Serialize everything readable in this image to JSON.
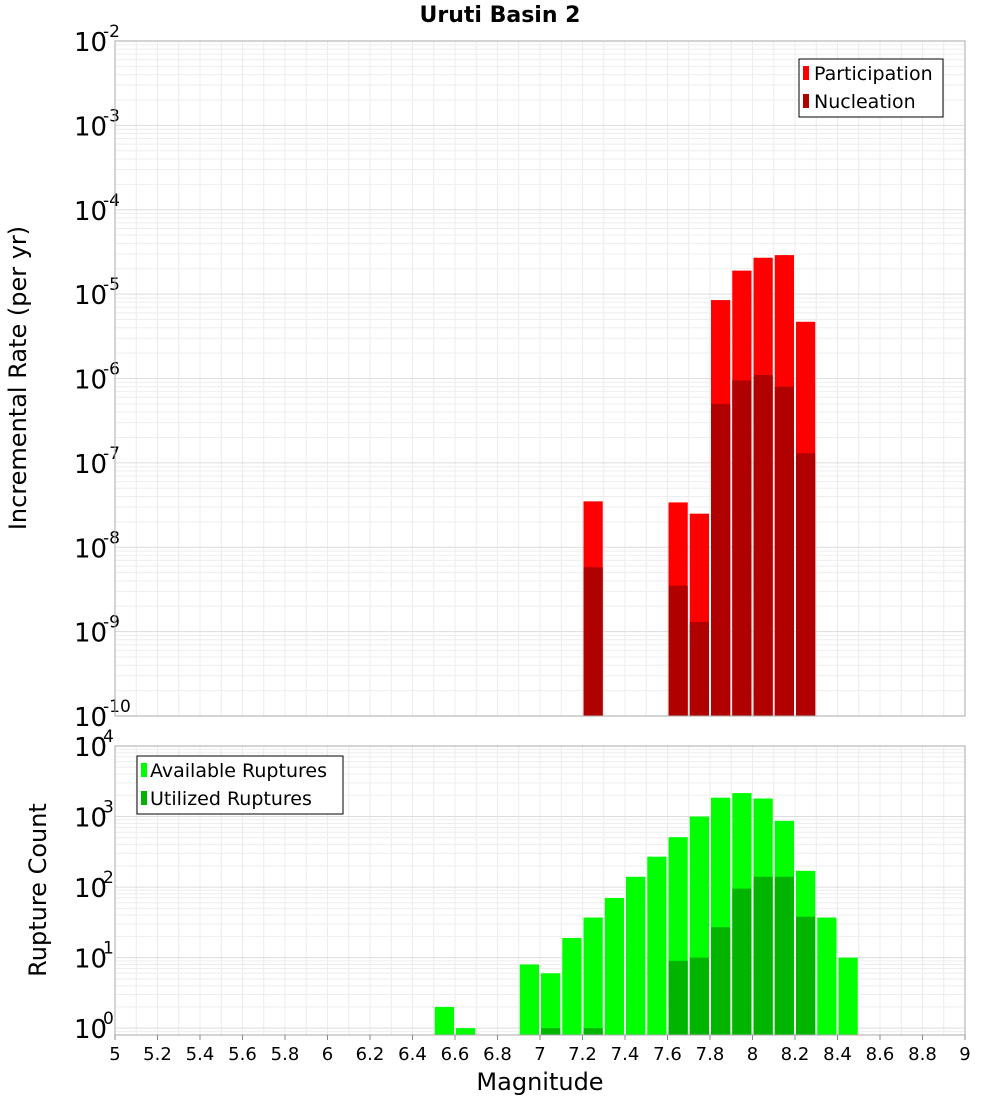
{
  "chart_data": [
    {
      "type": "bar",
      "title": "Uruti Basin 2",
      "xlabel": "",
      "ylabel": "Incremental Rate (per yr)",
      "yscale": "log",
      "ylim": [
        1e-10,
        0.01
      ],
      "xlim": [
        5,
        9
      ],
      "grid": true,
      "legend_position": "top-right",
      "colors": {
        "participation": "#ff0000",
        "nucleation": "#b00000"
      },
      "series": [
        {
          "name": "Participation",
          "x": [
            7.25,
            7.65,
            7.75,
            7.85,
            7.95,
            8.05,
            8.15,
            8.25
          ],
          "values": [
            3.5e-08,
            3.4e-08,
            2.5e-08,
            8.5e-06,
            1.9e-05,
            2.7e-05,
            2.9e-05,
            4.7e-06
          ]
        },
        {
          "name": "Nucleation",
          "x": [
            7.25,
            7.65,
            7.75,
            7.85,
            7.95,
            8.05,
            8.15,
            8.25
          ],
          "values": [
            5.8e-09,
            3.5e-09,
            1.3e-09,
            5e-07,
            9.5e-07,
            1.1e-06,
            8e-07,
            1.3e-07
          ]
        }
      ]
    },
    {
      "type": "bar",
      "xlabel": "Magnitude",
      "ylabel": "Rupture Count",
      "yscale": "log",
      "ylim": [
        0.8,
        10000
      ],
      "xlim": [
        5,
        9
      ],
      "grid": true,
      "legend_position": "top-left",
      "colors": {
        "available": "#00ff00",
        "utilized": "#00b400"
      },
      "series": [
        {
          "name": "Available Ruptures",
          "x": [
            6.55,
            6.65,
            6.95,
            7.05,
            7.15,
            7.25,
            7.35,
            7.45,
            7.55,
            7.65,
            7.75,
            7.85,
            7.95,
            8.05,
            8.15,
            8.25,
            8.35,
            8.45
          ],
          "values": [
            2,
            1,
            8,
            6,
            19,
            37,
            70,
            140,
            270,
            510,
            1000,
            1850,
            2150,
            1800,
            870,
            170,
            37,
            10
          ]
        },
        {
          "name": "Utilized Ruptures",
          "x": [
            7.05,
            7.25,
            7.65,
            7.75,
            7.85,
            7.95,
            8.05,
            8.15,
            8.25
          ],
          "values": [
            1,
            1,
            9,
            10,
            27,
            95,
            140,
            140,
            38
          ]
        }
      ]
    }
  ],
  "x_ticks": [
    "5",
    "5.2",
    "5.4",
    "5.6",
    "5.8",
    "6",
    "6.2",
    "6.4",
    "6.6",
    "6.8",
    "7",
    "7.2",
    "7.4",
    "7.6",
    "7.8",
    "8",
    "8.2",
    "8.4",
    "8.6",
    "8.8",
    "9"
  ],
  "top_y_exponents": [
    "-10",
    "-9",
    "-8",
    "-7",
    "-6",
    "-5",
    "-4",
    "-3",
    "-2"
  ],
  "bottom_y_exponents": [
    "0",
    "1",
    "2",
    "3",
    "4"
  ]
}
